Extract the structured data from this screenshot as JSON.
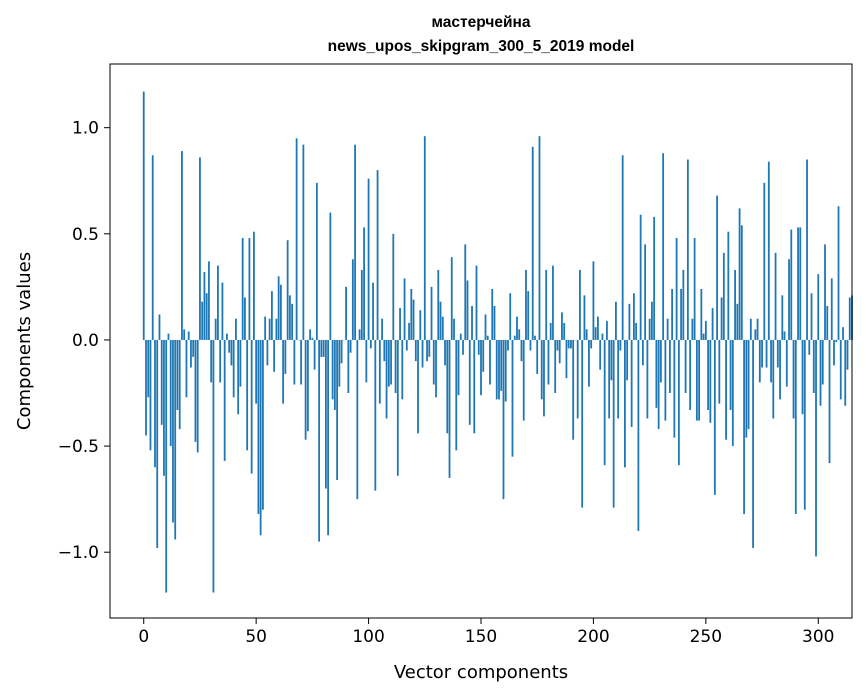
{
  "chart_data": {
    "type": "bar",
    "title_line1": "мастерчейна",
    "title_line2": "news_upos_skipgram_300_5_2019 model",
    "xlabel": "Vector components",
    "ylabel": "Components values",
    "xlim": [
      -15,
      315
    ],
    "ylim": [
      -1.31,
      1.3
    ],
    "xticks": [
      0,
      50,
      100,
      150,
      200,
      250,
      300
    ],
    "xtick_labels": [
      "0",
      "50",
      "100",
      "150",
      "200",
      "250",
      "300"
    ],
    "yticks": [
      -1.0,
      -0.5,
      0.0,
      0.5,
      1.0
    ],
    "ytick_labels": [
      "−1.0",
      "−0.5",
      "0.0",
      "0.5",
      "1.0"
    ],
    "bar_color": "#1f77b4",
    "values": [
      1.17,
      -0.45,
      -0.27,
      -0.52,
      0.87,
      -0.6,
      -0.98,
      0.12,
      -0.4,
      -0.64,
      -1.19,
      0.03,
      -0.5,
      -0.86,
      -0.94,
      -0.33,
      -0.42,
      0.89,
      0.05,
      -0.27,
      0.04,
      -0.13,
      -0.08,
      -0.48,
      -0.53,
      0.86,
      0.18,
      0.32,
      0.22,
      0.37,
      -0.2,
      -1.19,
      0.1,
      0.35,
      -0.2,
      0.27,
      -0.57,
      0.03,
      -0.06,
      -0.12,
      -0.27,
      0.1,
      -0.35,
      -0.22,
      0.48,
      0.2,
      -0.52,
      0.48,
      -0.63,
      0.51,
      -0.3,
      -0.82,
      -0.92,
      -0.8,
      0.11,
      -0.12,
      0.1,
      0.23,
      -0.15,
      0.1,
      0.3,
      0.26,
      -0.3,
      -0.16,
      0.47,
      0.21,
      0.17,
      -0.21,
      0.95,
      0.0,
      -0.21,
      0.92,
      -0.47,
      -0.43,
      0.05,
      0.01,
      -0.14,
      0.74,
      -0.95,
      -0.08,
      -0.08,
      -0.7,
      -0.92,
      0.6,
      -0.28,
      -0.33,
      -0.66,
      -0.22,
      -0.11,
      0.0,
      0.25,
      -0.25,
      -0.06,
      0.38,
      0.92,
      -0.75,
      0.05,
      0.33,
      0.53,
      -0.2,
      0.76,
      -0.04,
      0.27,
      -0.71,
      0.8,
      -0.3,
      0.1,
      -0.1,
      -0.37,
      -0.22,
      -0.21,
      0.5,
      -0.25,
      -0.64,
      0.15,
      -0.28,
      0.29,
      -0.05,
      0.08,
      0.24,
      0.19,
      -0.1,
      -0.44,
      0.14,
      -0.13,
      0.96,
      -0.1,
      -0.08,
      0.25,
      -0.21,
      -0.27,
      0.33,
      0.18,
      0.11,
      -0.12,
      -0.44,
      -0.65,
      0.39,
      0.1,
      -0.52,
      -0.26,
      0.03,
      -0.07,
      0.45,
      0.28,
      -0.4,
      0.16,
      -0.44,
      0.35,
      -0.07,
      -0.26,
      -0.15,
      0.12,
      0.02,
      -0.21,
      0.24,
      0.16,
      -0.28,
      -0.28,
      -0.24,
      -0.75,
      -0.29,
      -0.05,
      0.22,
      -0.55,
      0.02,
      0.11,
      0.05,
      -0.1,
      -0.38,
      0.33,
      0.23,
      -0.05,
      0.91,
      0.02,
      -0.16,
      0.96,
      -0.28,
      -0.36,
      0.33,
      -0.21,
      0.08,
      0.35,
      -0.25,
      -0.05,
      -0.11,
      0.13,
      0.08,
      -0.18,
      -0.04,
      -0.04,
      -0.47,
      0.0,
      -0.37,
      0.33,
      -0.79,
      0.21,
      0.05,
      -0.22,
      -0.04,
      0.37,
      0.06,
      0.11,
      -0.14,
      0.03,
      -0.59,
      0.09,
      -0.37,
      -0.19,
      -0.79,
      0.18,
      -0.37,
      -0.05,
      0.87,
      -0.6,
      -0.19,
      0.17,
      -0.41,
      0.22,
      0.08,
      -0.9,
      0.59,
      -0.12,
      0.45,
      -0.37,
      0.1,
      0.18,
      0.58,
      -0.32,
      -0.42,
      -0.2,
      0.88,
      -0.38,
      0.1,
      -0.25,
      0.24,
      -0.46,
      0.48,
      -0.59,
      0.24,
      0.33,
      -0.25,
      0.85,
      -0.33,
      0.1,
      0.48,
      -0.38,
      -0.38,
      0.24,
      0.03,
      0.09,
      -0.33,
      -0.39,
      0.15,
      -0.73,
      0.68,
      -0.3,
      0.2,
      0.41,
      -0.47,
      0.51,
      -0.33,
      -0.5,
      0.33,
      0.17,
      0.62,
      0.54,
      -0.82,
      -0.46,
      -0.42,
      0.1,
      -0.98,
      0.05,
      0.1,
      -0.2,
      -0.13,
      0.74,
      -0.13,
      0.84,
      -0.2,
      -0.37,
      0.41,
      -0.13,
      -0.28,
      0.21,
      0.04,
      -0.22,
      0.38,
      0.52,
      -0.37,
      -0.82,
      0.53,
      0.53,
      -0.35,
      -0.8,
      0.85,
      -0.07,
      0.22,
      -0.25,
      -1.02,
      0.31,
      -0.31,
      -0.21,
      0.45,
      0.16,
      -0.58,
      0.29,
      -0.12,
      -0.01,
      0.63,
      -0.28,
      0.06,
      -0.31,
      -0.14,
      0.2,
      0.21
    ]
  }
}
